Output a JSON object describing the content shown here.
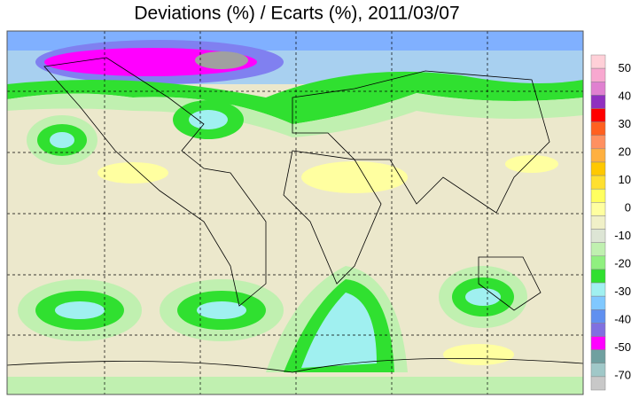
{
  "title": "Deviations (%) / Ecarts (%), 2011/03/07",
  "colorbar": {
    "labels": [
      50,
      40,
      30,
      20,
      10,
      0,
      -10,
      -20,
      -30,
      -40,
      -50,
      -70
    ],
    "colors": [
      "#ffd0d8",
      "#f8a8d0",
      "#e080d0",
      "#9030c0",
      "#ff0000",
      "#ff6020",
      "#ff9060",
      "#ffb040",
      "#ffc800",
      "#ffe030",
      "#ffff60",
      "#ffffa0",
      "#f0f0c8",
      "#dde5d5",
      "#c0f0b0",
      "#90f080",
      "#30e030",
      "#a0f0f0",
      "#80c8ff",
      "#6090f0",
      "#8070e0",
      "#ff00ff",
      "#70a0a0",
      "#a0c8c8",
      "#c8c8c8"
    ]
  }
}
